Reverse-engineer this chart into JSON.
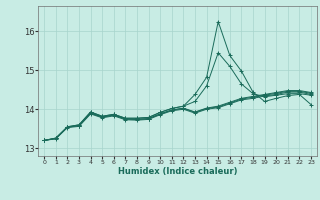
{
  "title": "",
  "xlabel": "Humidex (Indice chaleur)",
  "background_color": "#c8ece4",
  "grid_color": "#a8d4cc",
  "line_color": "#1a6b5a",
  "ylim": [
    12.8,
    16.65
  ],
  "xlim": [
    -0.5,
    23.5
  ],
  "yticks": [
    13,
    14,
    15,
    16
  ],
  "xticks": [
    0,
    1,
    2,
    3,
    4,
    5,
    6,
    7,
    8,
    9,
    10,
    11,
    12,
    13,
    14,
    15,
    16,
    17,
    18,
    19,
    20,
    21,
    22,
    23
  ],
  "series": [
    [
      13.2,
      13.26,
      13.55,
      13.6,
      13.93,
      13.82,
      13.87,
      13.77,
      13.77,
      13.79,
      13.92,
      14.02,
      14.08,
      14.38,
      14.82,
      16.25,
      15.38,
      14.98,
      14.44,
      14.2,
      14.28,
      14.35,
      14.38,
      14.12
    ],
    [
      13.2,
      13.26,
      13.55,
      13.6,
      13.93,
      13.82,
      13.87,
      13.77,
      13.77,
      13.79,
      13.92,
      14.02,
      14.08,
      14.2,
      14.6,
      15.45,
      15.1,
      14.65,
      14.4,
      14.32,
      14.36,
      14.4,
      14.4,
      14.36
    ],
    [
      13.2,
      13.25,
      13.54,
      13.58,
      13.9,
      13.8,
      13.85,
      13.75,
      13.74,
      13.76,
      13.88,
      13.98,
      14.03,
      13.93,
      14.03,
      14.08,
      14.18,
      14.28,
      14.33,
      14.38,
      14.43,
      14.48,
      14.48,
      14.43
    ],
    [
      13.2,
      13.25,
      13.54,
      13.58,
      13.9,
      13.8,
      13.85,
      13.75,
      13.74,
      13.76,
      13.88,
      13.98,
      14.02,
      13.92,
      14.02,
      14.06,
      14.16,
      14.26,
      14.31,
      14.36,
      14.41,
      14.46,
      14.46,
      14.41
    ],
    [
      13.2,
      13.24,
      13.53,
      13.56,
      13.88,
      13.78,
      13.83,
      13.73,
      13.72,
      13.74,
      13.86,
      13.96,
      14.0,
      13.9,
      14.0,
      14.04,
      14.14,
      14.24,
      14.28,
      14.34,
      14.38,
      14.44,
      14.44,
      14.38
    ]
  ]
}
